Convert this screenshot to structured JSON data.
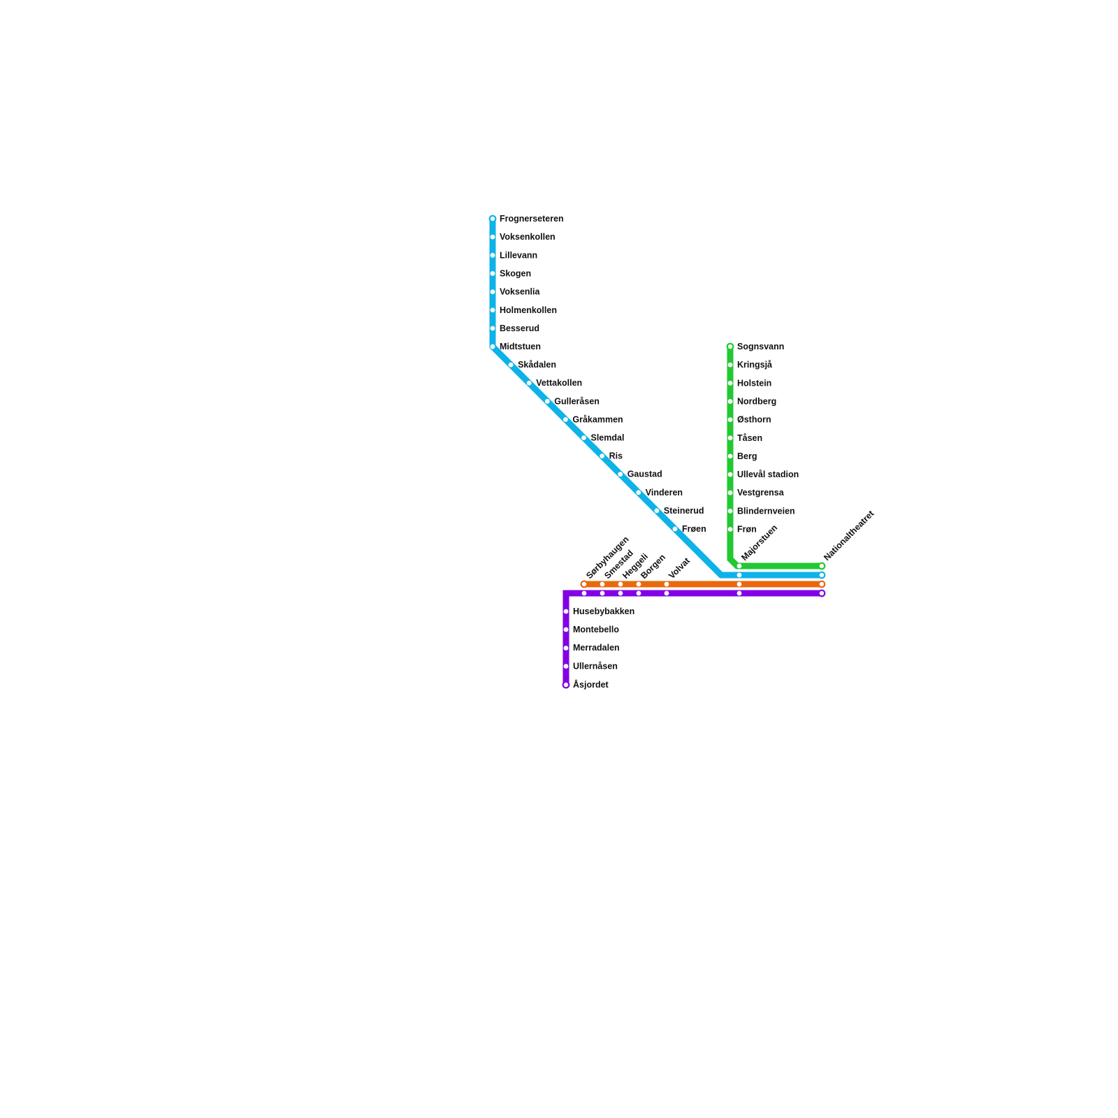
{
  "lines": [
    {
      "id": "blue",
      "color": "#0db3e8",
      "stations": [
        "Frognerseteren",
        "Voksenkollen",
        "Lillevann",
        "Skogen",
        "Voksenlia",
        "Holmenkollen",
        "Besserud",
        "Midtstuen",
        "Skådalen",
        "Vettakollen",
        "Gulleråsen",
        "Gråkammen",
        "Slemdal",
        "Ris",
        "Gaustad",
        "Vinderen",
        "Steinerud",
        "Frøen",
        "Majorstuen",
        "Nationaltheatret"
      ]
    },
    {
      "id": "green",
      "color": "#22c832",
      "stations": [
        "Sognsvann",
        "Kringsjå",
        "Holstein",
        "Nordberg",
        "Østhorn",
        "Tåsen",
        "Berg",
        "Ullevål stadion",
        "Vestgrensa",
        "Blindernveien",
        "Frøn",
        "Majorstuen",
        "Nationaltheatret"
      ]
    },
    {
      "id": "orange",
      "color": "#e8690c",
      "stations": [
        "Sørbyhaugen",
        "Smestad",
        "Heggeli",
        "Borgen",
        "Volvat",
        "Majorstuen",
        "Nationaltheatret"
      ]
    },
    {
      "id": "purple",
      "color": "#8200e6",
      "stations": [
        "Åsjordet",
        "Ullernåsen",
        "Merradalen",
        "Montebello",
        "Husebybakken",
        "Sørbyhaugen",
        "Smestad",
        "Heggeli",
        "Borgen",
        "Volvat",
        "Majorstuen",
        "Nationaltheatret"
      ]
    }
  ],
  "labels": [
    "Frognerseteren",
    "Voksenkollen",
    "Lillevann",
    "Skogen",
    "Voksenlia",
    "Holmenkollen",
    "Besserud",
    "Midtstuen",
    "Skådalen",
    "Vettakollen",
    "Gulleråsen",
    "Gråkammen",
    "Slemdal",
    "Ris",
    "Gaustad",
    "Vinderen",
    "Steinerud",
    "Frøen",
    "Sognsvann",
    "Kringsjå",
    "Holstein",
    "Nordberg",
    "Østhorn",
    "Tåsen",
    "Berg",
    "Ullevål stadion",
    "Vestgrensa",
    "Blindernveien",
    "Frøn",
    "Majorstuen",
    "Nationaltheatret",
    "Sørbyhaugen",
    "Smestad",
    "Heggeli",
    "Borgen",
    "Volvat",
    "Husebybakken",
    "Montebello",
    "Merradalen",
    "Ullernåsen",
    "Åsjordet"
  ]
}
